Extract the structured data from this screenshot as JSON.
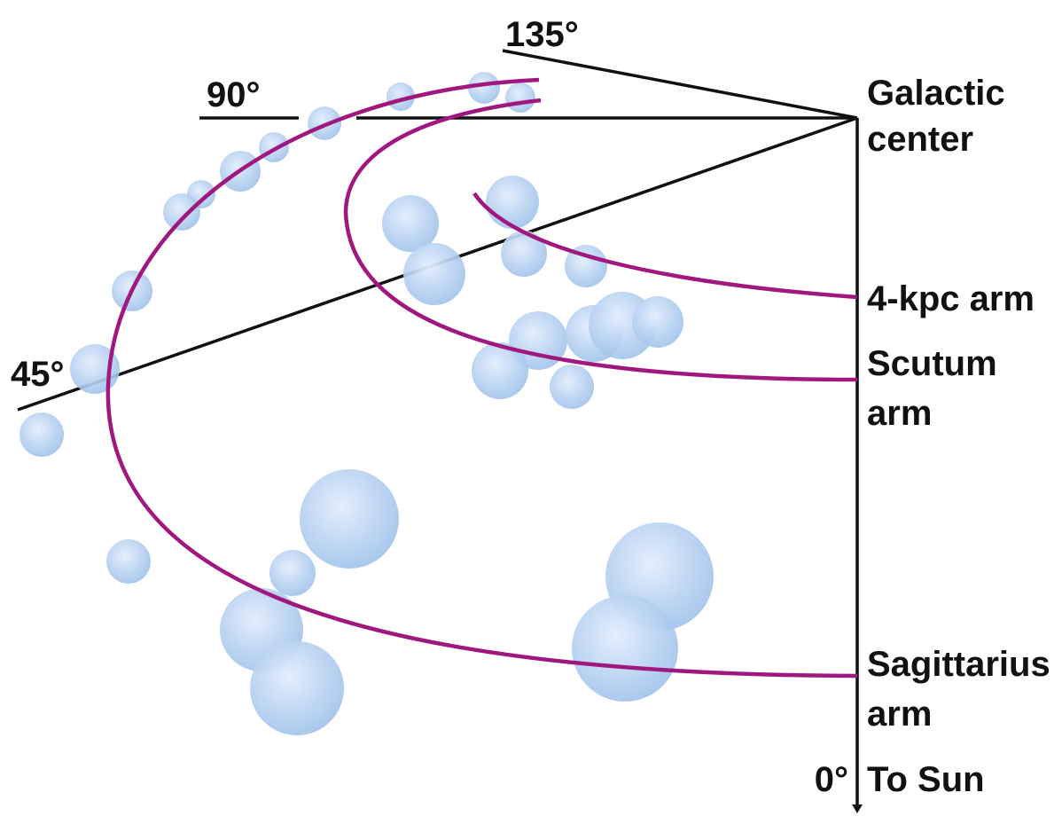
{
  "labels": {
    "galactic_center": [
      "Galactic",
      "center"
    ],
    "to_sun": "To Sun",
    "angle_0": "0°",
    "angle_45": "45°",
    "angle_90": "90°",
    "angle_135": "135°"
  },
  "arms": [
    {
      "name": [
        "4-kpc arm"
      ]
    },
    {
      "name": [
        "Scutum",
        "arm"
      ]
    },
    {
      "name": [
        "Sagittarius",
        "arm"
      ]
    }
  ],
  "colors": {
    "arm": "#a0187f",
    "axis": "#111111",
    "cloud_light": "#e3eefc",
    "cloud_dark": "#9cc0ea"
  }
}
